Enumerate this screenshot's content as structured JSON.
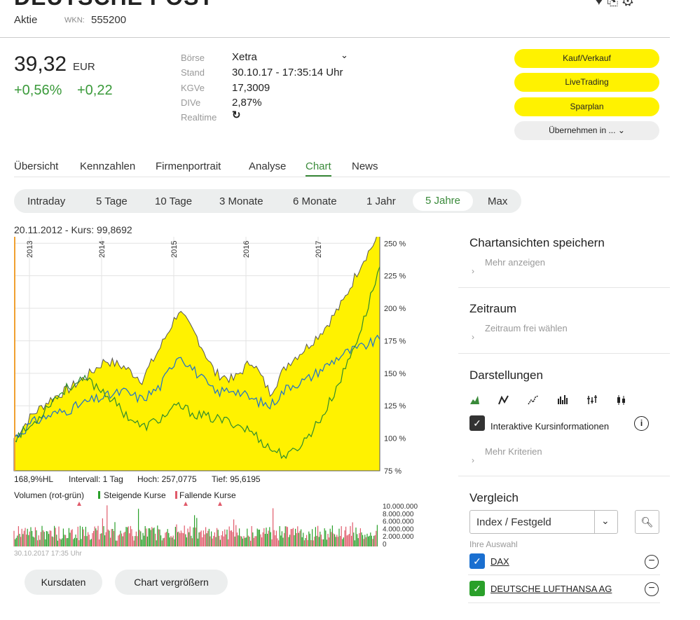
{
  "header": {
    "title_partial": "DEUTSCHE POST",
    "top_icons": "♥ ⎘ ⚙",
    "type": "Aktie",
    "wkn_label": "WKN:",
    "wkn": "555200"
  },
  "quote": {
    "price": "39,32",
    "currency": "EUR",
    "change_pct": "+0,56%",
    "change_abs": "+0,22",
    "boerse_label": "Börse",
    "boerse": "Xetra",
    "stand_label": "Stand",
    "stand": "30.10.17 - 17:35:14 Uhr",
    "kgve_label": "KGVe",
    "kgve": "17,3009",
    "dive_label": "DIVe",
    "dive": "2,87%",
    "realtime_label": "Realtime"
  },
  "actions": {
    "buy_sell": "Kauf/Verkauf",
    "livetrading": "LiveTrading",
    "sparplan": "Sparplan",
    "uebernehmen": "Übernehmen in ..."
  },
  "tabs": [
    "Übersicht",
    "Kennzahlen",
    "Firmenportrait",
    "Analyse",
    "Chart",
    "News"
  ],
  "ranges": [
    "Intraday",
    "5 Tage",
    "10 Tage",
    "3 Monate",
    "6 Monate",
    "1 Jahr",
    "5 Jahre",
    "Max"
  ],
  "chart_header": "20.11.2012  -  Kurs: 99,8692",
  "stats": {
    "hl": "168,9%HL",
    "interval": "Intervall: 1 Tag",
    "hoch": "Hoch: 257,0775",
    "tief": "Tief: 95,6195"
  },
  "volume": {
    "label": "Volumen (rot-grün)",
    "rising": "Steigende Kurse",
    "falling": "Fallende Kurse",
    "footer": "30.10.2017 17:35 Uhr"
  },
  "buttons": {
    "kursdaten": "Kursdaten",
    "vergroessern": "Chart vergrößern"
  },
  "right_panel": {
    "save_title": "Chartansichten speichern",
    "save_link": "Mehr anzeigen",
    "zeitraum_title": "Zeitraum",
    "zeitraum_link": "Zeitraum frei wählen",
    "darst_title": "Darstellungen",
    "interaktiv": "Interaktive Kursinformationen",
    "mehr_krit": "Mehr Kriterien",
    "vergleich_title": "Vergleich",
    "select_value": "Index / Festgeld",
    "ihre_auswahl": "Ihre Auswahl",
    "compare": [
      "DAX",
      "DEUTSCHE LUFTHANSA AG"
    ]
  },
  "colors": {
    "accent_yellow": "#fff200",
    "green": "#3a8a3a",
    "blue_check": "#1a6fd0",
    "green_check": "#2aa02a"
  },
  "chart_data": {
    "type": "area",
    "years": [
      "2013",
      "2014",
      "2015",
      "2016",
      "2017"
    ],
    "y_ticks": [
      "250 %",
      "225 %",
      "200 %",
      "175 %",
      "150 %",
      "125 %",
      "100 %",
      "75 %"
    ],
    "ylim": [
      75,
      255
    ],
    "x": [
      "2012-11",
      "2013-03",
      "2013-06",
      "2013-09",
      "2013-12",
      "2014-03",
      "2014-06",
      "2014-09",
      "2014-12",
      "2015-03",
      "2015-06",
      "2015-09",
      "2015-12",
      "2016-03",
      "2016-06",
      "2016-09",
      "2016-12",
      "2017-03",
      "2017-06",
      "2017-09",
      "2017-10"
    ],
    "series": [
      {
        "name": "",
        "color": "#fff200",
        "values": [
          100,
          118,
          130,
          138,
          148,
          160,
          155,
          145,
          170,
          198,
          178,
          150,
          145,
          160,
          135,
          158,
          170,
          185,
          205,
          235,
          257
        ]
      },
      {
        "name": "DAX",
        "color": "#1a6fd0",
        "values": [
          100,
          112,
          118,
          122,
          128,
          132,
          136,
          130,
          140,
          165,
          150,
          135,
          138,
          130,
          125,
          140,
          145,
          155,
          165,
          170,
          176
        ]
      },
      {
        "name": "DEUTSCHE LUFTHANSA AG",
        "color": "#2e8b2e",
        "values": [
          100,
          110,
          128,
          140,
          145,
          135,
          120,
          108,
          115,
          125,
          118,
          115,
          112,
          105,
          92,
          86,
          100,
          120,
          150,
          185,
          232
        ]
      }
    ],
    "volume_ticks": [
      "10.000.000",
      "8.000.000",
      "6.000.000",
      "4.000.000",
      "2.000.000",
      "0"
    ]
  }
}
